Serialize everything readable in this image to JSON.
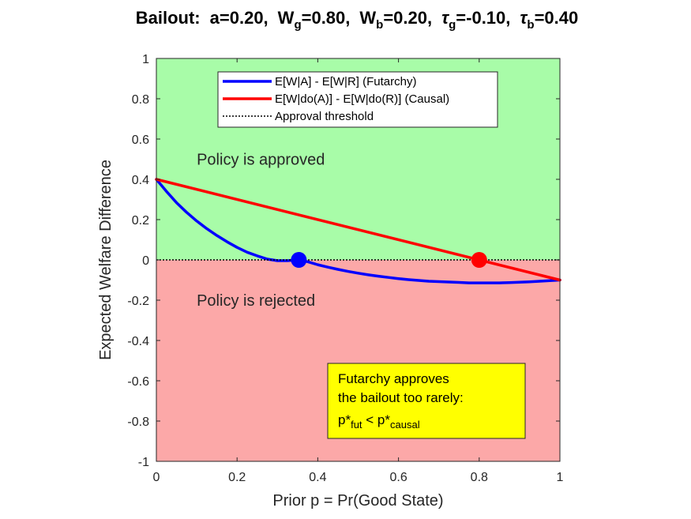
{
  "chart_data": {
    "type": "line",
    "title": {
      "prefix": "Bailout:",
      "parts": [
        {
          "base": "a",
          "sub": "",
          "value": "=0.20"
        },
        {
          "base": "W",
          "sub": "g",
          "value": "=0.80"
        },
        {
          "base": "W",
          "sub": "b",
          "value": "=0.20"
        },
        {
          "base": "τ",
          "sub": "g",
          "value": "=-0.10"
        },
        {
          "base": "τ",
          "sub": "b",
          "value": "=0.40"
        }
      ]
    },
    "xlabel": "Prior p = Pr(Good State)",
    "ylabel": "Expected Welfare Difference",
    "xlim": [
      0,
      1
    ],
    "ylim": [
      -1,
      1
    ],
    "xticks": [
      0,
      0.2,
      0.4,
      0.6,
      0.8,
      1
    ],
    "xtick_labels": [
      "0",
      "0.2",
      "0.4",
      "0.6",
      "0.8",
      "1"
    ],
    "yticks": [
      -1,
      -0.8,
      -0.6,
      -0.4,
      -0.2,
      0,
      0.2,
      0.4,
      0.6,
      0.8,
      1
    ],
    "ytick_labels": [
      "-1",
      "-0.8",
      "-0.6",
      "-0.4",
      "-0.2",
      "0",
      "0.2",
      "0.4",
      "0.6",
      "0.8",
      "1"
    ],
    "grid": false,
    "regions": [
      {
        "name": "approve-region",
        "y_from": 0,
        "y_to": 1,
        "color": "#a8fca8",
        "label": "Policy is approved",
        "label_x": 0.1,
        "label_y": 0.5
      },
      {
        "name": "reject-region",
        "y_from": -1,
        "y_to": 0,
        "color": "#fca8a8",
        "label": "Policy is rejected",
        "label_x": 0.1,
        "label_y": -0.2
      }
    ],
    "series": [
      {
        "name": "E[W|A] - E[W|R] (Futarchy)",
        "color": "#0000ff",
        "x": [
          0,
          0.025,
          0.05,
          0.075,
          0.1,
          0.125,
          0.15,
          0.175,
          0.2,
          0.225,
          0.25,
          0.275,
          0.3,
          0.325,
          0.35,
          0.375,
          0.4,
          0.425,
          0.45,
          0.475,
          0.5,
          0.525,
          0.55,
          0.575,
          0.6,
          0.625,
          0.65,
          0.675,
          0.7,
          0.725,
          0.75,
          0.775,
          0.8,
          0.825,
          0.85,
          0.875,
          0.9,
          0.925,
          0.95,
          0.975,
          1
        ],
        "y": [
          0.4,
          0.34,
          0.284,
          0.236,
          0.193,
          0.155,
          0.121,
          0.09,
          0.062,
          0.038,
          0.02,
          0.004,
          -0.004,
          -0.004,
          0.0,
          -0.009,
          -0.024,
          -0.036,
          -0.047,
          -0.057,
          -0.066,
          -0.074,
          -0.081,
          -0.087,
          -0.093,
          -0.098,
          -0.102,
          -0.106,
          -0.108,
          -0.11,
          -0.112,
          -0.114,
          -0.114,
          -0.114,
          -0.114,
          -0.113,
          -0.111,
          -0.109,
          -0.106,
          -0.103,
          -0.1
        ]
      },
      {
        "name": "E[W|do(A)] - E[W|do(R)] (Causal)",
        "color": "#ff0000",
        "x": [
          0,
          1
        ],
        "y": [
          0.4,
          -0.1
        ]
      },
      {
        "name": "Approval threshold",
        "color": "#000000",
        "dashed": true,
        "x": [
          0,
          1
        ],
        "y": [
          0,
          0
        ]
      }
    ],
    "points": [
      {
        "name": "futarchy-threshold-point",
        "x": 0.353,
        "y": 0,
        "color": "#0000ff"
      },
      {
        "name": "causal-threshold-point",
        "x": 0.8,
        "y": 0,
        "color": "#ff0000"
      }
    ],
    "legend": {
      "location": "top-center"
    },
    "annotation": {
      "lines": [
        "Futarchy  approves",
        "the  bailout  too  rarely:"
      ],
      "formula": {
        "p1": "p*",
        "sub1": "fut",
        "op": " < ",
        "p2": "p*",
        "sub2": "causal"
      },
      "background": "#ffff00",
      "x": 0.43,
      "y": -0.52
    }
  }
}
